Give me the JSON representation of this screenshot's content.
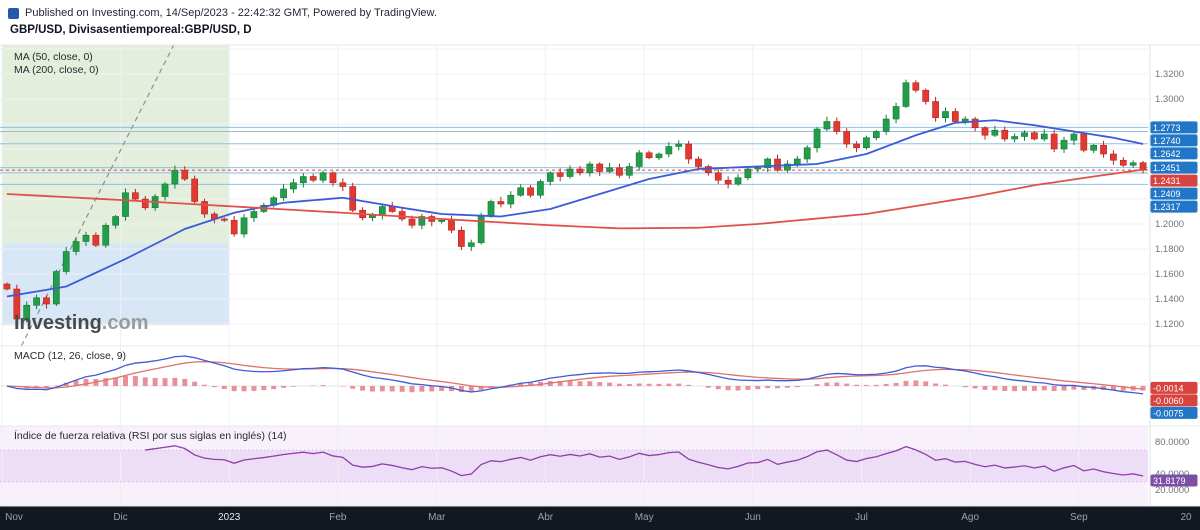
{
  "header": {
    "published_line": "Published on Investing.com, 14/Sep/2023 - 22:42:32 GMT, Powered by TradingView.",
    "symbol_line": "GBP/USD, Divisasentiemporeal:GBP/USD, D"
  },
  "watermark": {
    "bold": "Investing",
    "light": ".com"
  },
  "colors": {
    "up": "#229e4a",
    "up_stroke": "#157a37",
    "down": "#e23a33",
    "down_stroke": "#b5271f",
    "ma50": "#3d5bd6",
    "ma200": "#e0514d",
    "level_line": "#8fc1e3",
    "badge_blue": "#2176c7",
    "badge_red": "#d8433f",
    "badge_purple": "#7b4fa6",
    "macd_line": "#3d5bd6",
    "signal_line": "#e0716b",
    "histogram": "#ea8f97",
    "rsi_line": "#8e3fa8",
    "rsi_bg": "#f8f1fb",
    "rsi_band": "#eeddf6",
    "axis_text": "#70737e",
    "time_bar_bg": "#131722",
    "time_text": "#9aa0ab",
    "time_text_year": "#e4e7ee",
    "zone_green": "#e3efdc",
    "zone_blue": "#d8e7f5",
    "grid": "#eef0f3",
    "trendline": "#8a8f98"
  },
  "chart_data": [
    {
      "type": "candlestick",
      "panel": "price",
      "title": "GBP/USD, Divisasentiemporeal:GBP/USD, D",
      "timeframe": "D",
      "x_tick_labels": [
        "Nov",
        "Dic",
        "2023",
        "Feb",
        "Mar",
        "Abr",
        "May",
        "Jun",
        "Jul",
        "Ago",
        "Sep",
        "20"
      ],
      "x_tick_indices": [
        0,
        12,
        23,
        34,
        44,
        55,
        65,
        76,
        87,
        98,
        109,
        120
      ],
      "ylim": [
        1.1024,
        1.3432
      ],
      "y_tick_values": [
        1.32,
        1.3,
        1.2,
        1.18,
        1.16,
        1.14,
        1.12
      ],
      "closes": [
        1.148,
        1.124,
        1.135,
        1.141,
        1.136,
        1.162,
        1.178,
        1.186,
        1.191,
        1.183,
        1.199,
        1.206,
        1.225,
        1.22,
        1.213,
        1.222,
        1.232,
        1.243,
        1.236,
        1.218,
        1.208,
        1.204,
        1.203,
        1.192,
        1.205,
        1.21,
        1.215,
        1.221,
        1.228,
        1.233,
        1.238,
        1.235,
        1.241,
        1.233,
        1.23,
        1.211,
        1.205,
        1.207,
        1.214,
        1.21,
        1.204,
        1.199,
        1.206,
        1.202,
        1.203,
        1.195,
        1.182,
        1.185,
        1.207,
        1.218,
        1.216,
        1.223,
        1.229,
        1.223,
        1.234,
        1.241,
        1.238,
        1.244,
        1.241,
        1.248,
        1.242,
        1.245,
        1.239,
        1.246,
        1.257,
        1.253,
        1.256,
        1.262,
        1.264,
        1.252,
        1.246,
        1.241,
        1.235,
        1.232,
        1.237,
        1.244,
        1.245,
        1.252,
        1.243,
        1.248,
        1.252,
        1.261,
        1.276,
        1.282,
        1.274,
        1.264,
        1.261,
        1.269,
        1.274,
        1.284,
        1.294,
        1.313,
        1.307,
        1.298,
        1.285,
        1.29,
        1.282,
        1.284,
        1.277,
        1.271,
        1.275,
        1.268,
        1.27,
        1.273,
        1.268,
        1.272,
        1.26,
        1.267,
        1.272,
        1.259,
        1.263,
        1.256,
        1.251,
        1.247,
        1.249,
        1.2431
      ],
      "overlays": [
        {
          "name": "MA (50, close, 0)",
          "anchors": [
            [
              0,
              1.142
            ],
            [
              6,
              1.15
            ],
            [
              12,
              1.172
            ],
            [
              18,
              1.196
            ],
            [
              23,
              1.209
            ],
            [
              28,
              1.217
            ],
            [
              34,
              1.221
            ],
            [
              40,
              1.213
            ],
            [
              44,
              1.208
            ],
            [
              50,
              1.206
            ],
            [
              55,
              1.212
            ],
            [
              60,
              1.224
            ],
            [
              65,
              1.236
            ],
            [
              70,
              1.244
            ],
            [
              76,
              1.246
            ],
            [
              82,
              1.248
            ],
            [
              87,
              1.256
            ],
            [
              92,
              1.271
            ],
            [
              96,
              1.281
            ],
            [
              100,
              1.283
            ],
            [
              104,
              1.279
            ],
            [
              108,
              1.274
            ],
            [
              112,
              1.269
            ],
            [
              115,
              1.264
            ]
          ]
        },
        {
          "name": "MA (200, close, 0)",
          "anchors": [
            [
              0,
              1.224
            ],
            [
              12,
              1.219
            ],
            [
              23,
              1.214
            ],
            [
              34,
              1.209
            ],
            [
              44,
              1.204
            ],
            [
              55,
              1.199
            ],
            [
              62,
              1.1965
            ],
            [
              70,
              1.197
            ],
            [
              76,
              1.2
            ],
            [
              87,
              1.208
            ],
            [
              98,
              1.222
            ],
            [
              104,
              1.231
            ],
            [
              110,
              1.238
            ],
            [
              115,
              1.2435
            ]
          ]
        }
      ],
      "support_resistance_levels": [
        1.2773,
        1.274,
        1.2642,
        1.2451,
        1.2409,
        1.2317
      ],
      "last_price": 1.2431,
      "zones": [
        {
          "from_index": 0,
          "to_index": 23,
          "price_top": 1.3432,
          "price_bottom": 1.185,
          "color": "#e3efdc"
        },
        {
          "from_index": 0,
          "to_index": 23,
          "price_top": 1.185,
          "price_bottom": 1.119,
          "color": "#d8e7f5"
        }
      ],
      "trendline": {
        "dashed": true
      }
    },
    {
      "type": "line",
      "panel": "macd",
      "title": "MACD (12, 26, close, 9)",
      "params": [
        12,
        26,
        9
      ],
      "y_tick_values": [
        0
      ],
      "badges": [
        {
          "value": -0.0014,
          "color_key": "badge_red"
        },
        {
          "value": -0.006,
          "color_key": "badge_red"
        },
        {
          "value": -0.0075,
          "color_key": "badge_blue"
        }
      ]
    },
    {
      "type": "line",
      "panel": "rsi",
      "title": "Índice de fuerza relativa (RSI por sus siglas en inglés) (14)",
      "period": 14,
      "y_tick_values": [
        80,
        40,
        20
      ],
      "band": [
        30,
        70
      ],
      "last_value": 31.8179
    }
  ]
}
